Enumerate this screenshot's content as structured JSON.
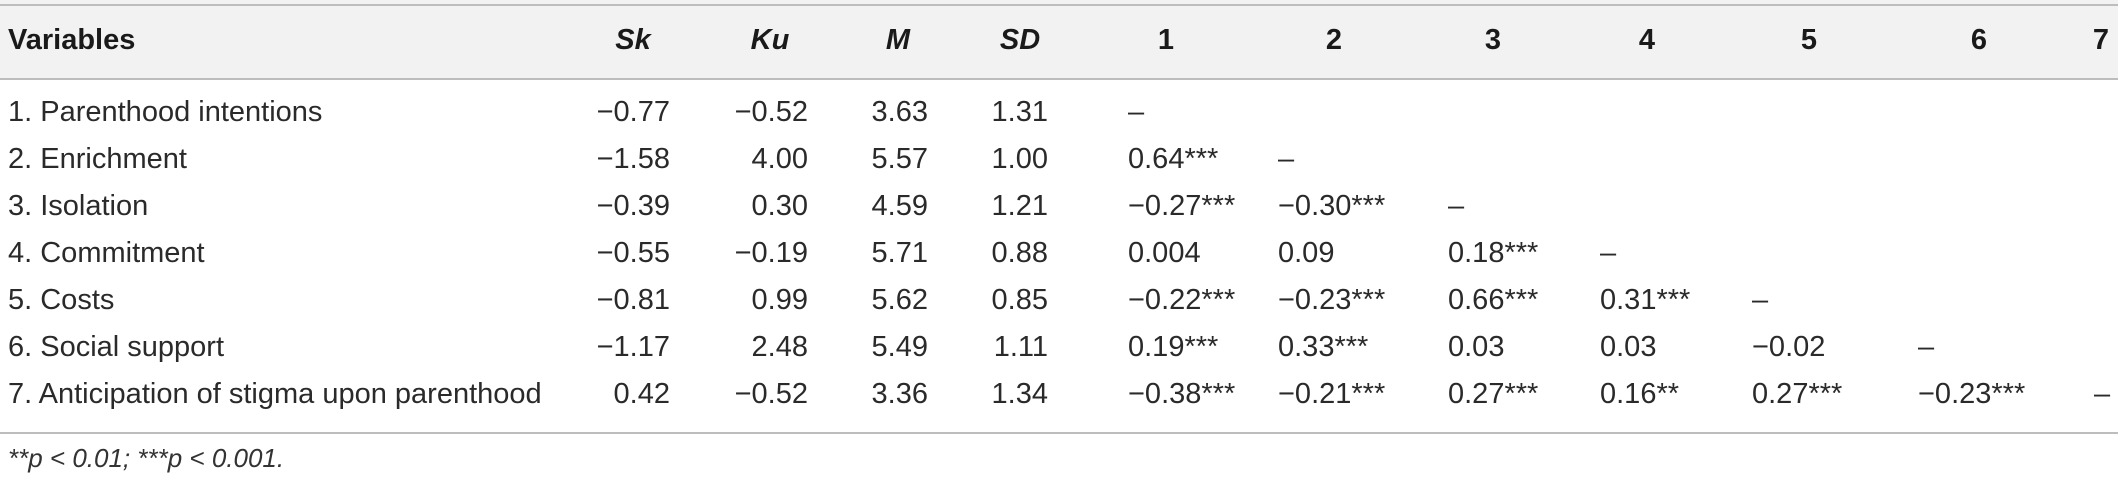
{
  "table": {
    "headers": [
      "Variables",
      "Sk",
      "Ku",
      "M",
      "SD",
      "1",
      "2",
      "3",
      "4",
      "5",
      "6",
      "7"
    ],
    "rows": [
      {
        "variable": "1. Parenthood intentions",
        "sk": "−0.77",
        "ku": "−0.52",
        "m": "3.63",
        "sd": "1.31",
        "c1": "–",
        "c2": "",
        "c3": "",
        "c4": "",
        "c5": "",
        "c6": "",
        "c7": ""
      },
      {
        "variable": "2. Enrichment",
        "sk": "−1.58",
        "ku": "4.00",
        "m": "5.57",
        "sd": "1.00",
        "c1": "0.64***",
        "c2": "–",
        "c3": "",
        "c4": "",
        "c5": "",
        "c6": "",
        "c7": ""
      },
      {
        "variable": "3. Isolation",
        "sk": "−0.39",
        "ku": "0.30",
        "m": "4.59",
        "sd": "1.21",
        "c1": "−0.27***",
        "c2": "−0.30***",
        "c3": "–",
        "c4": "",
        "c5": "",
        "c6": "",
        "c7": ""
      },
      {
        "variable": "4. Commitment",
        "sk": "−0.55",
        "ku": "−0.19",
        "m": "5.71",
        "sd": "0.88",
        "c1": "0.004",
        "c2": "0.09",
        "c3": "0.18***",
        "c4": "–",
        "c5": "",
        "c6": "",
        "c7": ""
      },
      {
        "variable": "5. Costs",
        "sk": "−0.81",
        "ku": "0.99",
        "m": "5.62",
        "sd": "0.85",
        "c1": "−0.22***",
        "c2": "−0.23***",
        "c3": "0.66***",
        "c4": "0.31***",
        "c5": "–",
        "c6": "",
        "c7": ""
      },
      {
        "variable": "6. Social support",
        "sk": "−1.17",
        "ku": "2.48",
        "m": "5.49",
        "sd": "1.11",
        "c1": "0.19***",
        "c2": "0.33***",
        "c3": "0.03",
        "c4": "0.03",
        "c5": "−0.02",
        "c6": "–",
        "c7": ""
      },
      {
        "variable": "7. Anticipation of stigma upon parenthood",
        "sk": "0.42",
        "ku": "−0.52",
        "m": "3.36",
        "sd": "1.34",
        "c1": "−0.38***",
        "c2": "−0.21***",
        "c3": "0.27***",
        "c4": "0.16**",
        "c5": "0.27***",
        "c6": "−0.23***",
        "c7": "–"
      }
    ]
  },
  "footnote": "**p < 0.01; ***p < 0.001."
}
